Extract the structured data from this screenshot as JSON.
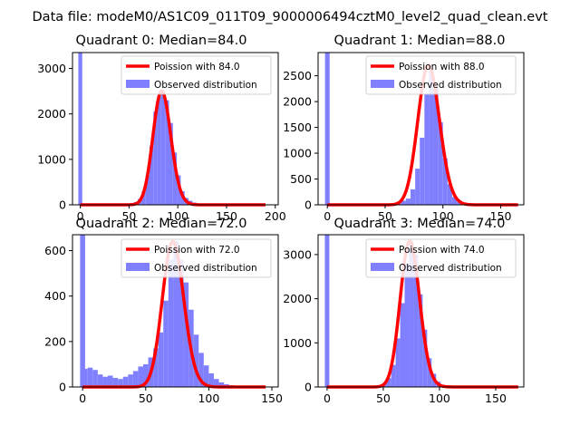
{
  "title": "Data file: modeM0/AS1C09_011T09_9000006494cztM0_level2_quad_clean.evt",
  "colors": {
    "observed": "#8080ff",
    "poisson": "#ff0000",
    "axis": "#000000"
  },
  "legend": {
    "poisson_prefix": "Poission with ",
    "observed_label": "Observed distribution"
  },
  "chart_data": [
    {
      "type": "bar",
      "title": "Quadrant 0: Median=84.0",
      "median": 84.0,
      "xlim": [
        -8,
        203
      ],
      "ylim": [
        0,
        3350
      ],
      "xticks": [
        0,
        50,
        100,
        150,
        200
      ],
      "yticks": [
        0,
        1000,
        2000,
        3000
      ],
      "legend_position": "top-right",
      "poisson_label_value": "84.0",
      "poisson_range": [
        0,
        190
      ],
      "bin_width": 4,
      "bins": [
        [
          -2,
          3350
        ],
        [
          51,
          30
        ],
        [
          55,
          60
        ],
        [
          59,
          130
        ],
        [
          63,
          300
        ],
        [
          67,
          650
        ],
        [
          71,
          1300
        ],
        [
          75,
          2050
        ],
        [
          79,
          2400
        ],
        [
          83,
          2500
        ],
        [
          87,
          2300
        ],
        [
          91,
          1800
        ],
        [
          95,
          1150
        ],
        [
          99,
          650
        ],
        [
          103,
          300
        ],
        [
          107,
          150
        ],
        [
          111,
          90
        ],
        [
          115,
          50
        ],
        [
          119,
          25
        ]
      ]
    },
    {
      "type": "bar",
      "title": "Quadrant 1: Median=88.0",
      "median": 88.0,
      "xlim": [
        -8,
        170
      ],
      "ylim": [
        0,
        2950
      ],
      "xticks": [
        0,
        50,
        100,
        150
      ],
      "yticks": [
        0,
        500,
        1000,
        1500,
        2000,
        2500
      ],
      "legend_position": "top-right",
      "poisson_label_value": "88.0",
      "poisson_range": [
        0,
        165
      ],
      "bin_width": 4,
      "bins": [
        [
          -2,
          2950
        ],
        [
          60,
          30
        ],
        [
          64,
          80
        ],
        [
          68,
          120
        ],
        [
          72,
          300
        ],
        [
          76,
          700
        ],
        [
          80,
          1300
        ],
        [
          84,
          2150
        ],
        [
          88,
          2700
        ],
        [
          92,
          2300
        ],
        [
          96,
          1600
        ],
        [
          100,
          900
        ],
        [
          104,
          400
        ],
        [
          108,
          150
        ],
        [
          112,
          60
        ],
        [
          116,
          25
        ]
      ]
    },
    {
      "type": "bar",
      "title": "Quadrant 2: Median=72.0",
      "median": 72.0,
      "xlim": [
        -8,
        155
      ],
      "ylim": [
        0,
        670
      ],
      "xticks": [
        0,
        50,
        100,
        150
      ],
      "yticks": [
        0,
        200,
        400,
        600
      ],
      "legend_position": "top-right",
      "poisson_label_value": "72.0",
      "poisson_range": [
        0,
        145
      ],
      "bin_width": 4,
      "bins": [
        [
          -2,
          670
        ],
        [
          0,
          80
        ],
        [
          4,
          85
        ],
        [
          8,
          75
        ],
        [
          12,
          55
        ],
        [
          16,
          45
        ],
        [
          20,
          50
        ],
        [
          24,
          40
        ],
        [
          28,
          35
        ],
        [
          32,
          45
        ],
        [
          36,
          55
        ],
        [
          40,
          70
        ],
        [
          44,
          90
        ],
        [
          48,
          100
        ],
        [
          52,
          130
        ],
        [
          56,
          170
        ],
        [
          60,
          240
        ],
        [
          64,
          380
        ],
        [
          68,
          560
        ],
        [
          72,
          640
        ],
        [
          76,
          560
        ],
        [
          80,
          460
        ],
        [
          84,
          340
        ],
        [
          88,
          230
        ],
        [
          92,
          150
        ],
        [
          96,
          95
        ],
        [
          100,
          60
        ],
        [
          104,
          35
        ],
        [
          108,
          20
        ],
        [
          112,
          12
        ],
        [
          116,
          8
        ],
        [
          120,
          5
        ]
      ]
    },
    {
      "type": "bar",
      "title": "Quadrant 3: Median=74.0",
      "median": 74.0,
      "xlim": [
        -8,
        175
      ],
      "ylim": [
        0,
        3450
      ],
      "xticks": [
        0,
        50,
        100,
        150
      ],
      "yticks": [
        0,
        1000,
        2000,
        3000
      ],
      "legend_position": "top-right",
      "poisson_label_value": "74.0",
      "poisson_range": [
        0,
        170
      ],
      "bin_width": 4,
      "bins": [
        [
          -2,
          3450
        ],
        [
          45,
          30
        ],
        [
          49,
          80
        ],
        [
          53,
          200
        ],
        [
          57,
          500
        ],
        [
          61,
          1100
        ],
        [
          65,
          1900
        ],
        [
          69,
          2800
        ],
        [
          73,
          3300
        ],
        [
          77,
          3000
        ],
        [
          81,
          2100
        ],
        [
          85,
          1300
        ],
        [
          89,
          650
        ],
        [
          93,
          300
        ],
        [
          97,
          120
        ],
        [
          101,
          50
        ],
        [
          105,
          20
        ]
      ]
    }
  ]
}
